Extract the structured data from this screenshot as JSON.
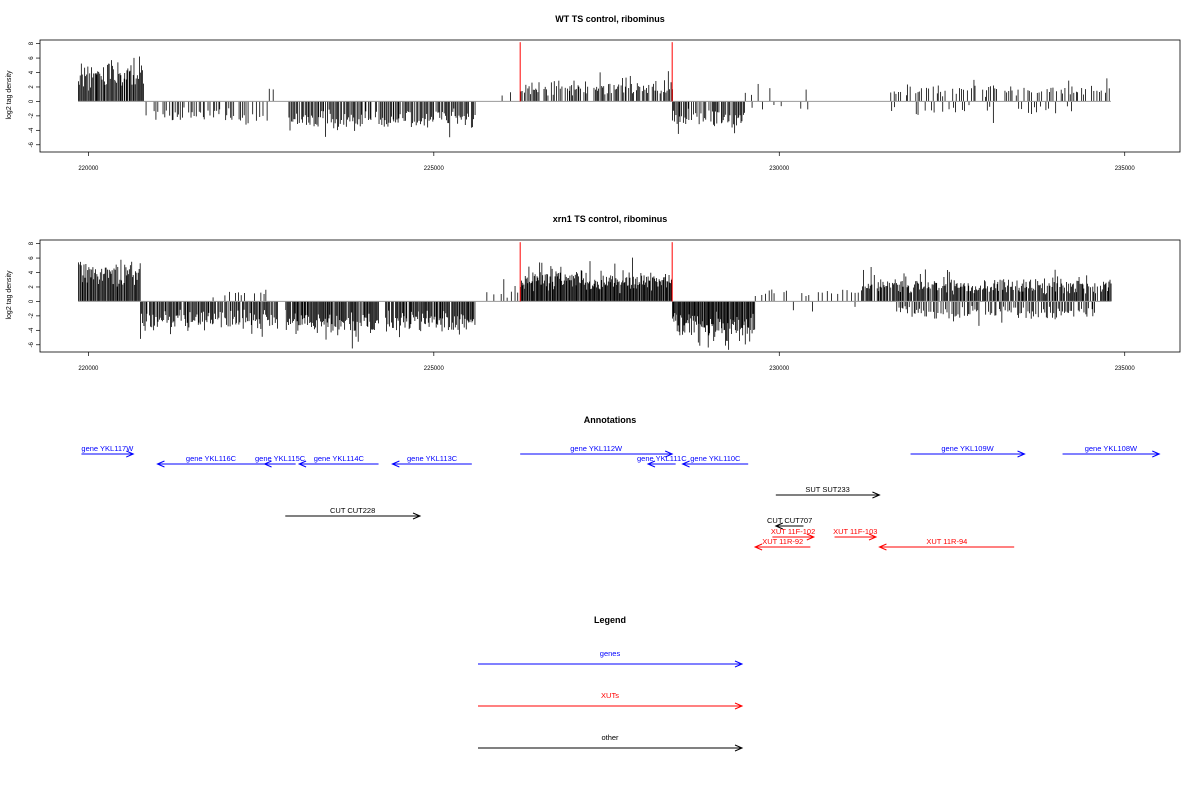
{
  "colors": {
    "gene": "#0000ff",
    "xut": "#ff0000",
    "other": "#000000",
    "marker": "#ff0000",
    "bars": "#000000",
    "baseline": "#999999"
  },
  "chart_data": [
    {
      "type": "bar",
      "title": "WT TS control, ribominus",
      "ylabel": "log2 tag density",
      "xlim": [
        219300,
        235800
      ],
      "ylim": [
        -7,
        8.5
      ],
      "xticks": [
        "220000",
        "225000",
        "230000",
        "235000"
      ],
      "xtick_values": [
        220000,
        225000,
        230000,
        235000
      ],
      "yticks": [
        "8",
        "6",
        "4",
        "2",
        "0",
        "-2",
        "-4",
        "-6"
      ],
      "ytick_values": [
        8,
        6,
        4,
        2,
        0,
        -2,
        -4,
        -6
      ],
      "markers": [
        226250,
        228450
      ],
      "segments": [
        {
          "start": 219850,
          "end": 220800,
          "base": 3.2,
          "amp": 3.8,
          "sign": 1,
          "step": 15,
          "density": 1.0
        },
        {
          "start": 220800,
          "end": 222600,
          "base": 1.7,
          "amp": 1.7,
          "sign": -1,
          "step": 25,
          "density": 0.75
        },
        {
          "start": 222600,
          "end": 222800,
          "base": 1.2,
          "amp": 0.6,
          "sign": 1,
          "step": 50,
          "density": 0.5
        },
        {
          "start": 222900,
          "end": 224100,
          "base": 2.2,
          "amp": 3.5,
          "sign": -1,
          "step": 18,
          "density": 0.95
        },
        {
          "start": 224150,
          "end": 225600,
          "base": 2.0,
          "amp": 2.8,
          "sign": -1,
          "step": 18,
          "density": 0.95
        },
        {
          "start": 225600,
          "end": 226200,
          "base": 0.8,
          "amp": 1.2,
          "sign": 1,
          "step": 60,
          "density": 0.5
        },
        {
          "start": 226250,
          "end": 228450,
          "base": 1.3,
          "amp": 3.0,
          "sign": 1,
          "step": 18,
          "density": 0.75
        },
        {
          "start": 228450,
          "end": 229500,
          "base": 2.0,
          "amp": 2.6,
          "sign": -1,
          "step": 16,
          "density": 0.9
        },
        {
          "start": 229500,
          "end": 230400,
          "base": 1.0,
          "amp": 1.8,
          "sign": 1,
          "step": 80,
          "density": 0.4
        },
        {
          "start": 229500,
          "end": 230400,
          "base": 0.8,
          "amp": 1.6,
          "sign": -1,
          "step": 80,
          "density": 0.35
        },
        {
          "start": 231600,
          "end": 234800,
          "base": 1.2,
          "amp": 2.0,
          "sign": 1,
          "step": 28,
          "density": 0.7
        },
        {
          "start": 231600,
          "end": 234400,
          "base": 0.9,
          "amp": 2.2,
          "sign": -1,
          "step": 45,
          "density": 0.5
        }
      ]
    },
    {
      "type": "bar",
      "title": "xrn1 TS control, ribominus",
      "ylabel": "log2 tag density",
      "xlim": [
        219300,
        235800
      ],
      "ylim": [
        -7,
        8.5
      ],
      "xticks": [
        "220000",
        "225000",
        "230000",
        "235000"
      ],
      "xtick_values": [
        220000,
        225000,
        230000,
        235000
      ],
      "yticks": [
        "8",
        "6",
        "4",
        "2",
        "0",
        "-2",
        "-4",
        "-6"
      ],
      "ytick_values": [
        8,
        6,
        4,
        2,
        0,
        -2,
        -4,
        -6
      ],
      "markers": [
        226250,
        228450
      ],
      "segments": [
        {
          "start": 219850,
          "end": 220750,
          "base": 3.5,
          "amp": 3.8,
          "sign": 1,
          "step": 14,
          "density": 1.0
        },
        {
          "start": 220750,
          "end": 222750,
          "base": 2.2,
          "amp": 2.8,
          "sign": -1,
          "step": 16,
          "density": 0.95
        },
        {
          "start": 221800,
          "end": 222700,
          "base": 0.8,
          "amp": 1.2,
          "sign": 1,
          "step": 40,
          "density": 0.5
        },
        {
          "start": 222850,
          "end": 224200,
          "base": 2.6,
          "amp": 3.8,
          "sign": -1,
          "step": 14,
          "density": 0.95
        },
        {
          "start": 224300,
          "end": 225600,
          "base": 2.5,
          "amp": 2.5,
          "sign": -1,
          "step": 14,
          "density": 0.95
        },
        {
          "start": 225600,
          "end": 226250,
          "base": 1.0,
          "amp": 2.0,
          "sign": 1,
          "step": 50,
          "density": 0.6
        },
        {
          "start": 226250,
          "end": 228450,
          "base": 2.3,
          "amp": 3.3,
          "sign": 1,
          "step": 12,
          "density": 1.0
        },
        {
          "start": 228450,
          "end": 229650,
          "base": 2.6,
          "amp": 3.8,
          "sign": -1,
          "step": 12,
          "density": 1.0
        },
        {
          "start": 229650,
          "end": 231200,
          "base": 0.9,
          "amp": 1.5,
          "sign": 1,
          "step": 45,
          "density": 0.6
        },
        {
          "start": 230000,
          "end": 231200,
          "base": 0.8,
          "amp": 1.2,
          "sign": -1,
          "step": 60,
          "density": 0.35
        },
        {
          "start": 231200,
          "end": 234800,
          "base": 1.8,
          "amp": 2.6,
          "sign": 1,
          "step": 14,
          "density": 0.9
        },
        {
          "start": 231700,
          "end": 234600,
          "base": 1.2,
          "amp": 2.4,
          "sign": -1,
          "step": 22,
          "density": 0.75
        }
      ]
    }
  ],
  "annotations": {
    "title": "Annotations",
    "features": [
      {
        "label": "gene YKL117W",
        "type": "gene",
        "start": 219900,
        "end": 220650,
        "strand": "+",
        "row": 0
      },
      {
        "label": "gene YKL116C",
        "type": "gene",
        "start": 221000,
        "end": 222550,
        "strand": "-",
        "row": 1
      },
      {
        "label": "gene YKL115C",
        "type": "gene",
        "start": 222550,
        "end": 223000,
        "strand": "-",
        "row": 1
      },
      {
        "label": "gene YKL114C",
        "type": "gene",
        "start": 223050,
        "end": 224200,
        "strand": "-",
        "row": 1
      },
      {
        "label": "gene YKL113C",
        "type": "gene",
        "start": 224400,
        "end": 225550,
        "strand": "-",
        "row": 1
      },
      {
        "label": "gene YKL112W",
        "type": "gene",
        "start": 226250,
        "end": 228450,
        "strand": "+",
        "row": 0
      },
      {
        "label": "gene YKL111C",
        "type": "gene",
        "start": 228100,
        "end": 228500,
        "strand": "-",
        "row": 1
      },
      {
        "label": "gene YKL110C",
        "type": "gene",
        "start": 228600,
        "end": 229550,
        "strand": "-",
        "row": 1
      },
      {
        "label": "gene YKL109W",
        "type": "gene",
        "start": 231900,
        "end": 233550,
        "strand": "+",
        "row": 0
      },
      {
        "label": "gene YKL108W",
        "type": "gene",
        "start": 234100,
        "end": 235500,
        "strand": "+",
        "row": 0
      },
      {
        "label": "SUT SUT233",
        "type": "other",
        "start": 229950,
        "end": 231450,
        "strand": "+",
        "row": 3
      },
      {
        "label": "CUT CUT228",
        "type": "other",
        "start": 222850,
        "end": 224800,
        "strand": "+",
        "row": 5
      },
      {
        "label": "CUT CUT707",
        "type": "other",
        "start": 229950,
        "end": 230350,
        "strand": "-",
        "row": 6
      },
      {
        "label": "XUT 11F-102",
        "type": "xut",
        "start": 229900,
        "end": 230500,
        "strand": "+",
        "row": 7
      },
      {
        "label": "XUT 11F-103",
        "type": "xut",
        "start": 230800,
        "end": 231400,
        "strand": "+",
        "row": 7
      },
      {
        "label": "XUT 11R-92",
        "type": "xut",
        "start": 229650,
        "end": 230450,
        "strand": "-",
        "row": 8
      },
      {
        "label": "XUT 11R-94",
        "type": "xut",
        "start": 231450,
        "end": 233400,
        "strand": "-",
        "row": 8
      }
    ]
  },
  "legend": {
    "title": "Legend",
    "items": [
      {
        "label": "genes",
        "type": "gene"
      },
      {
        "label": "XUTs",
        "type": "xut"
      },
      {
        "label": "other",
        "type": "other"
      }
    ]
  }
}
